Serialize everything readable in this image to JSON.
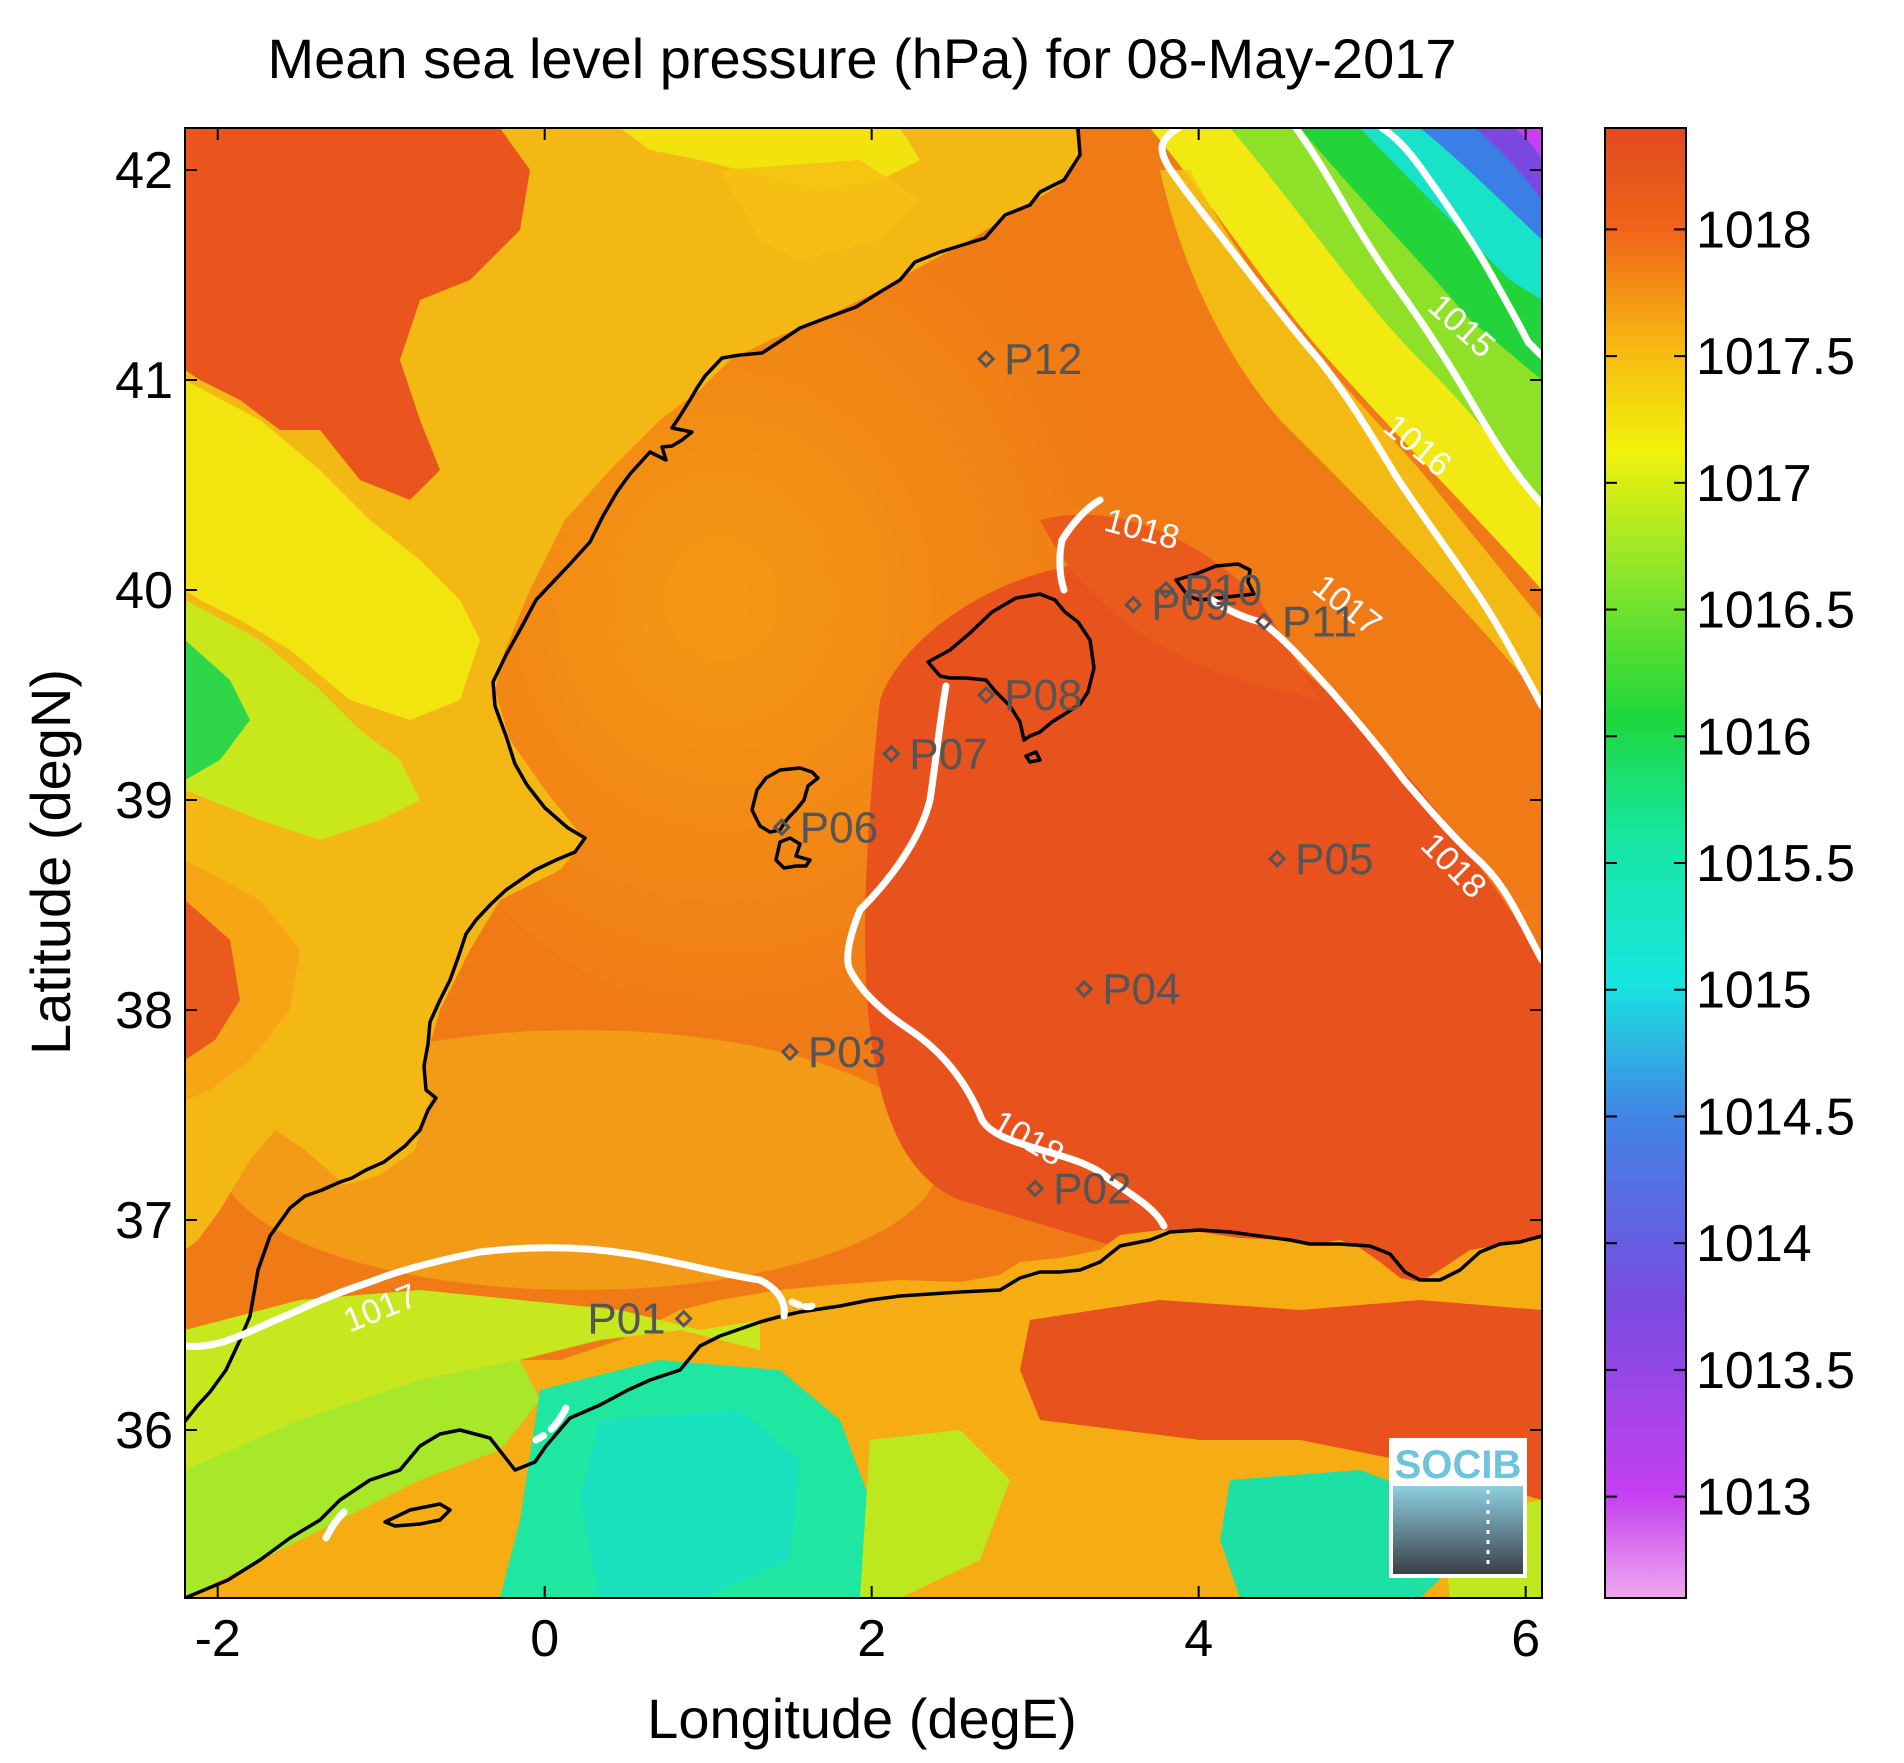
{
  "figure": {
    "title": "Mean sea level pressure (hPa) for 08-May-2017",
    "xlabel": "Longitude (degE)",
    "ylabel": "Latitude (degN)",
    "x_ticks": [
      "-2",
      "0",
      "2",
      "4",
      "6"
    ],
    "y_ticks": [
      "36",
      "37",
      "38",
      "39",
      "40",
      "41",
      "42"
    ],
    "logo_text": "SOCIB"
  },
  "colorbar": {
    "labels": [
      "1013",
      "1013.5",
      "1014",
      "1014.5",
      "1015",
      "1015.5",
      "1016",
      "1016.5",
      "1017",
      "1017.5",
      "1018"
    ],
    "values": [
      1013,
      1013.5,
      1014,
      1014.5,
      1015,
      1015.5,
      1016,
      1016.5,
      1017,
      1017.5,
      1018
    ],
    "range": [
      1012.6,
      1018.4
    ],
    "colors": [
      "#e89bea",
      "#c540f0",
      "#7a4be0",
      "#3f86e6",
      "#18e6e0",
      "#17e6a0",
      "#1fd73a",
      "#8fe62a",
      "#f2f20c",
      "#f6b012",
      "#e8531c"
    ]
  },
  "chart_data": {
    "type": "map",
    "variable": "Mean sea level pressure",
    "units": "hPa",
    "date": "08-May-2017",
    "xlim": [
      -2.2,
      6.1
    ],
    "ylim": [
      35.2,
      42.2
    ],
    "stations": [
      {
        "id": "P01",
        "lon": 0.85,
        "lat": 36.53
      },
      {
        "id": "P02",
        "lon": 3.0,
        "lat": 37.15
      },
      {
        "id": "P03",
        "lon": 1.5,
        "lat": 37.8
      },
      {
        "id": "P04",
        "lon": 3.3,
        "lat": 38.1
      },
      {
        "id": "P05",
        "lon": 4.48,
        "lat": 38.72
      },
      {
        "id": "P06",
        "lon": 1.45,
        "lat": 38.87
      },
      {
        "id": "P07",
        "lon": 2.12,
        "lat": 39.22
      },
      {
        "id": "P08",
        "lon": 2.7,
        "lat": 39.5
      },
      {
        "id": "P09",
        "lon": 3.6,
        "lat": 39.93
      },
      {
        "id": "P10",
        "lon": 3.8,
        "lat": 40.0
      },
      {
        "id": "P11",
        "lon": 4.4,
        "lat": 39.85
      },
      {
        "id": "P12",
        "lon": 2.7,
        "lat": 41.1
      }
    ],
    "contour_labels": [
      {
        "text": "1015",
        "lon": 5.6,
        "lat": 41.25,
        "angle": 42
      },
      {
        "text": "1016",
        "lon": 5.33,
        "lat": 40.68,
        "angle": 40
      },
      {
        "text": "1017",
        "lon": 4.9,
        "lat": 39.92,
        "angle": 38
      },
      {
        "text": "1018",
        "lon": 5.55,
        "lat": 38.68,
        "angle": 45
      },
      {
        "text": "1018",
        "lon": 3.65,
        "lat": 40.28,
        "angle": 15
      },
      {
        "text": "1018",
        "lon": 2.95,
        "lat": 37.38,
        "angle": 30
      },
      {
        "text": "1017",
        "lon": -1.0,
        "lat": 36.57,
        "angle": -22
      }
    ]
  }
}
